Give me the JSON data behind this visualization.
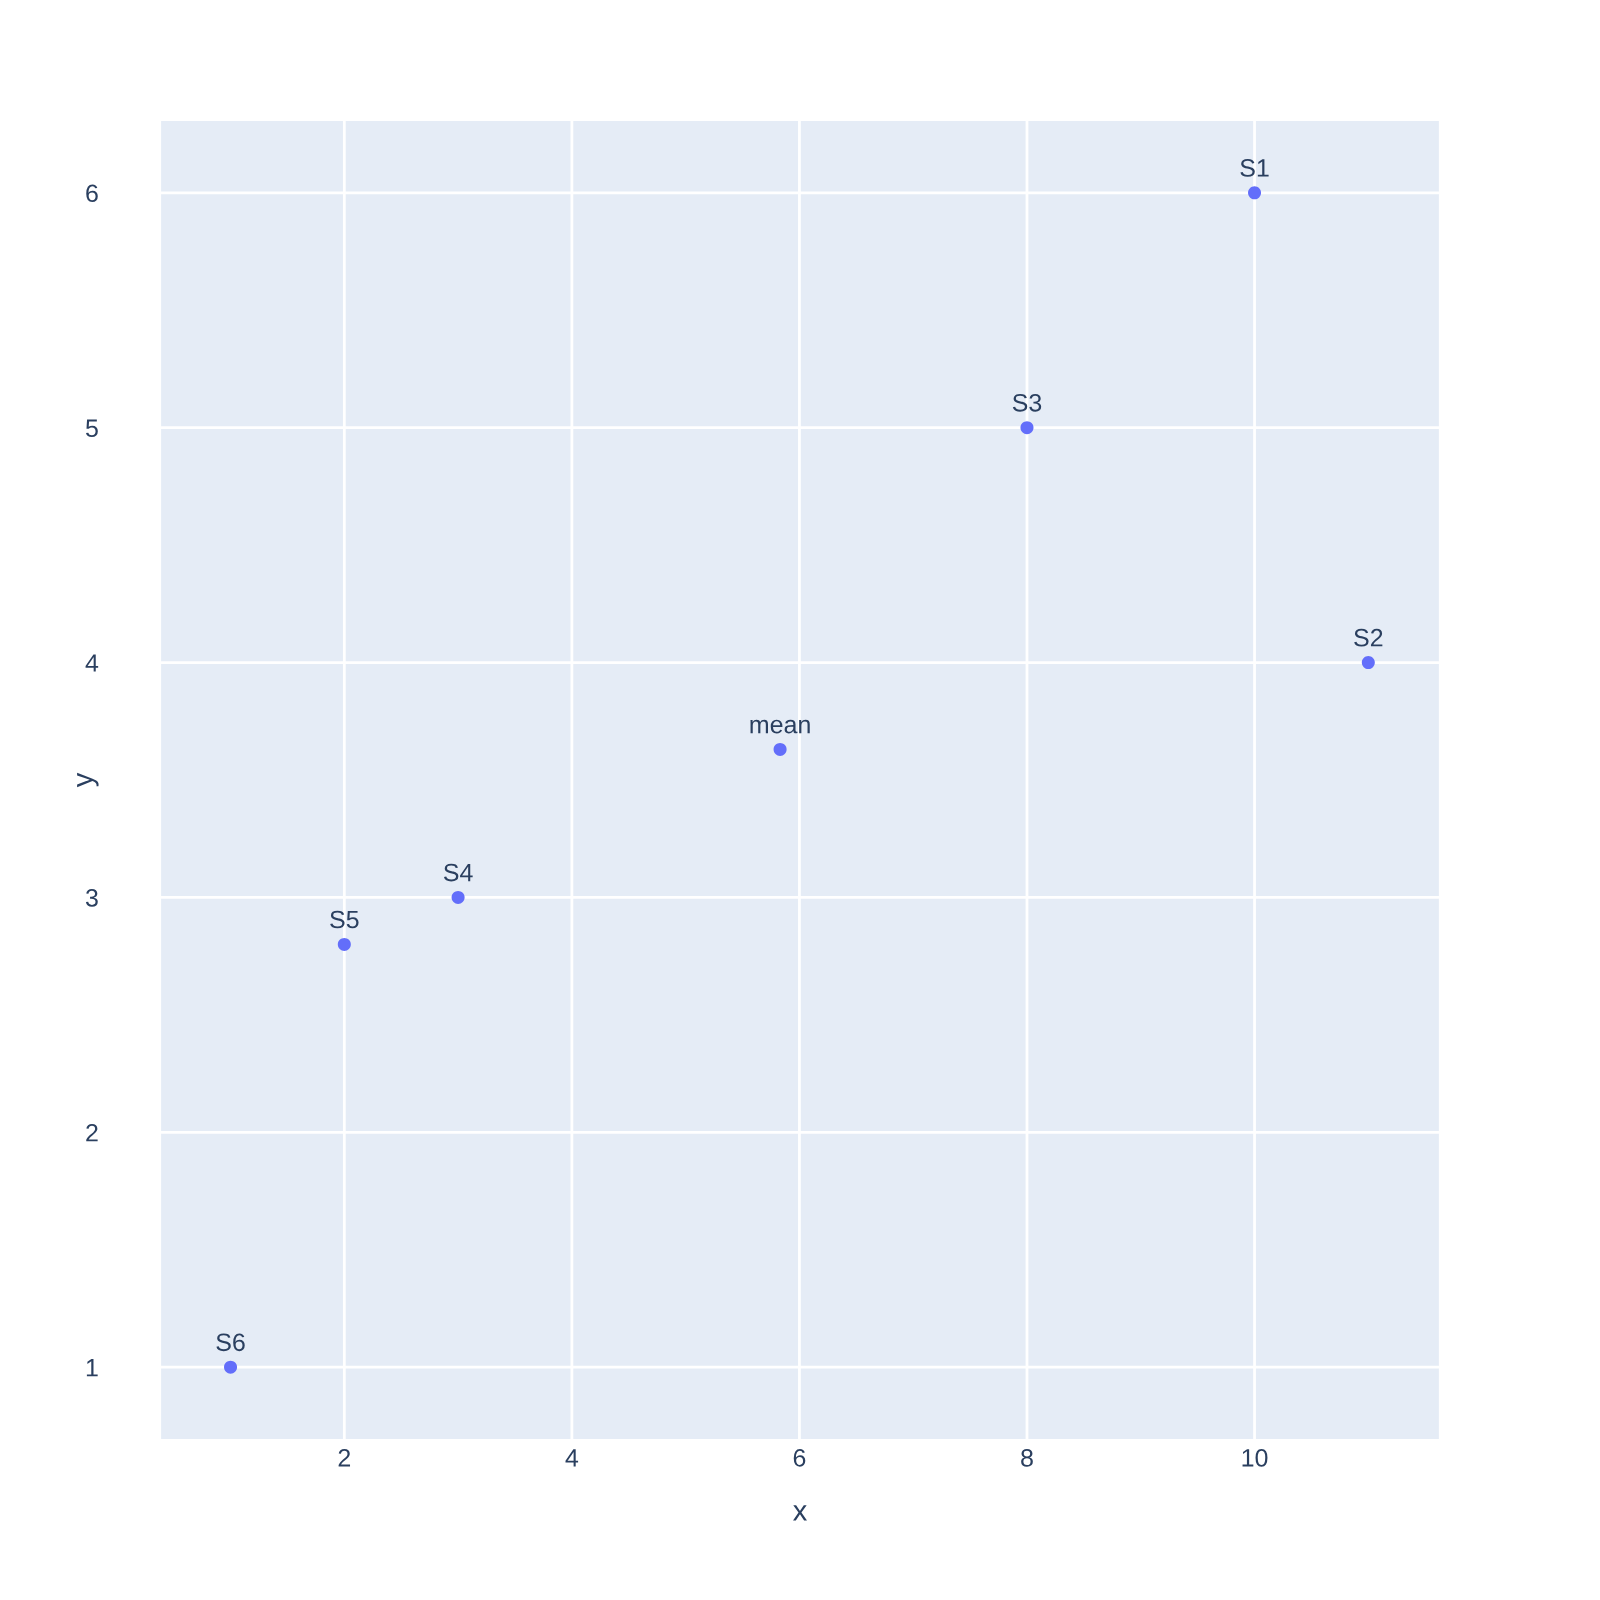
{
  "chart_data": {
    "type": "scatter",
    "xlabel": "x",
    "ylabel": "y",
    "x": [
      10,
      11,
      8,
      3,
      2,
      1,
      5.83
    ],
    "series": [
      {
        "color": "#636efa",
        "values": [
          6,
          4,
          5,
          3,
          2.8,
          1,
          3.63
        ]
      }
    ],
    "annotations": [
      {
        "text": "S1",
        "x": 10,
        "y": 6
      },
      {
        "text": "S2",
        "x": 11,
        "y": 4
      },
      {
        "text": "S3",
        "x": 8,
        "y": 5
      },
      {
        "text": "S4",
        "x": 3,
        "y": 3
      },
      {
        "text": "S5",
        "x": 2,
        "y": 2.8
      },
      {
        "text": "S6",
        "x": 1,
        "y": 1
      },
      {
        "text": "mean",
        "x": 5.83,
        "y": 3.63
      }
    ],
    "xlim": [
      0.38,
      11.63
    ],
    "ylim": [
      0.69,
      6.31
    ],
    "xticks": [
      2,
      4,
      6,
      8,
      10
    ],
    "yticks": [
      1,
      2,
      3,
      4,
      5,
      6
    ],
    "grid": true,
    "marker": "circle"
  }
}
